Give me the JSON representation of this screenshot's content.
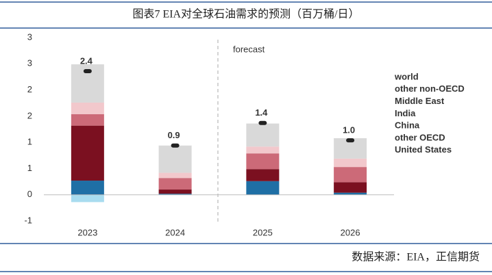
{
  "header": {
    "title": "图表7  EIA对全球石油需求的预测（百万桶/日）"
  },
  "footer": {
    "source": "数据来源：EIA，正信期货"
  },
  "chart_data": {
    "type": "stacked_bar",
    "categories": [
      "2023",
      "2024",
      "2025",
      "2026"
    ],
    "annotation": "forecast",
    "series": [
      {
        "name": "United States",
        "color": "#1f6fa5",
        "values": [
          0.27,
          0.02,
          0.26,
          0.04
        ]
      },
      {
        "name": "other OECD",
        "color": "#a8dcef",
        "values": [
          -0.14,
          0,
          0,
          0
        ]
      },
      {
        "name": "China",
        "color": "#7b1020",
        "values": [
          1.05,
          0.08,
          0.23,
          0.2
        ]
      },
      {
        "name": "India",
        "color": "#cc6a78",
        "values": [
          0.22,
          0.22,
          0.3,
          0.29
        ]
      },
      {
        "name": "Middle East",
        "color": "#f2c8cc",
        "values": [
          0.22,
          0.1,
          0.13,
          0.16
        ]
      },
      {
        "name": "other non-OECD",
        "color": "#d9d9d9",
        "values": [
          0.73,
          0.52,
          0.44,
          0.39
        ]
      },
      {
        "name": "world",
        "color": "#222222",
        "type": "marker",
        "values": [
          2.36,
          0.94,
          1.37,
          1.04
        ],
        "value_labels": [
          "2.4",
          "0.9",
          "1.4",
          "1.0"
        ]
      }
    ],
    "ylim": [
      -0.5,
      3.0
    ],
    "yticks": [
      {
        "value": -0.5,
        "label": "-1"
      },
      0,
      {
        "value": 0.5,
        "label": "1"
      },
      1,
      {
        "value": 1.5,
        "label": "2"
      },
      2,
      {
        "value": 2.5,
        "label": "3"
      },
      3
    ],
    "grid": false
  }
}
